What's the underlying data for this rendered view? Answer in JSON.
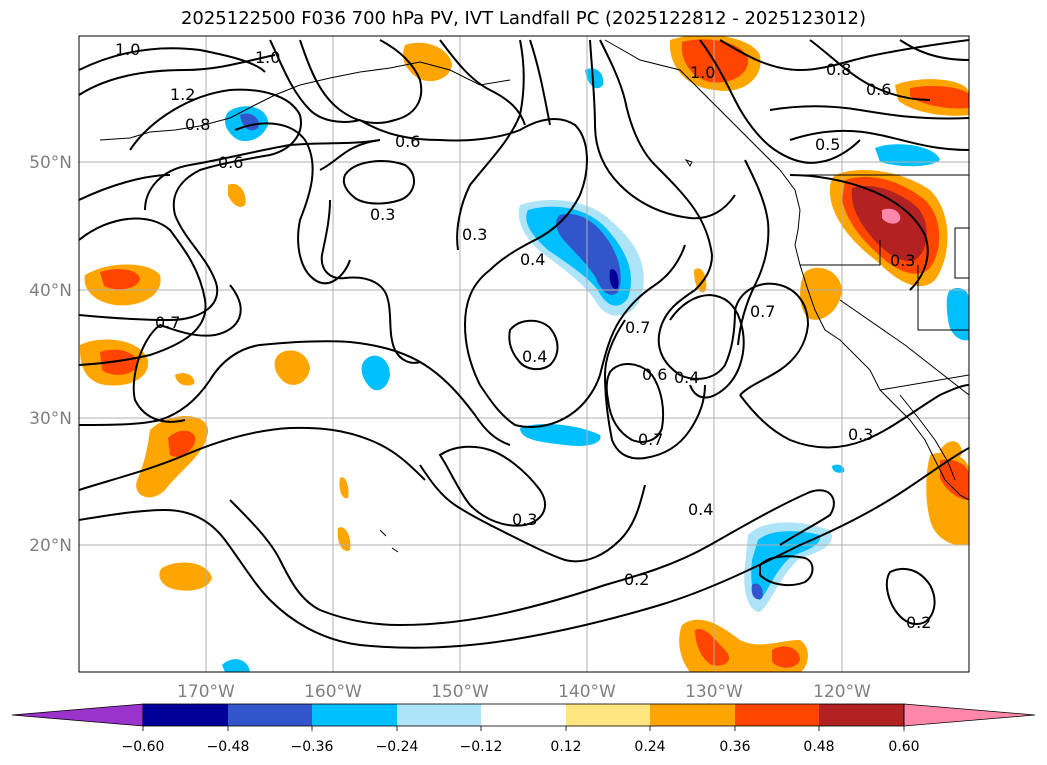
{
  "title": "2025122500 F036 700 hPa PV, IVT Landfall PC (2025122812 - 2025123012)",
  "map": {
    "lon_labels": [
      "170°W",
      "160°W",
      "150°W",
      "140°W",
      "130°W",
      "120°W"
    ],
    "lat_labels": [
      "50°N",
      "40°N",
      "30°N",
      "20°N"
    ],
    "contour_labels": [
      "1.0",
      "1.0",
      "1.2",
      "0.8",
      "0.6",
      "0.6",
      "0.3",
      "0.3",
      "0.4",
      "0.7",
      "0.4",
      "0.7",
      "0.6",
      "0.4",
      "0.7",
      "0.7",
      "1.0",
      "0.8",
      "0.6",
      "0.5",
      "0.3",
      "0.3",
      "0.4",
      "0.3",
      "0.2",
      "0.2"
    ],
    "colors": {
      "grid": "#b0b0b0",
      "contour": "#000000",
      "coast": "#000000"
    }
  },
  "colorbar": {
    "tick_labels": [
      "−0.60",
      "−0.48",
      "−0.36",
      "−0.24",
      "−0.12",
      "0.12",
      "0.24",
      "0.36",
      "0.48",
      "0.60"
    ],
    "colors": [
      "#9933cc",
      "#000099",
      "#3355cc",
      "#00bfff",
      "#aee4f7",
      "#ffffff",
      "#ffe680",
      "#ffa500",
      "#ff4500",
      "#b22222",
      "#ff88aa"
    ]
  }
}
